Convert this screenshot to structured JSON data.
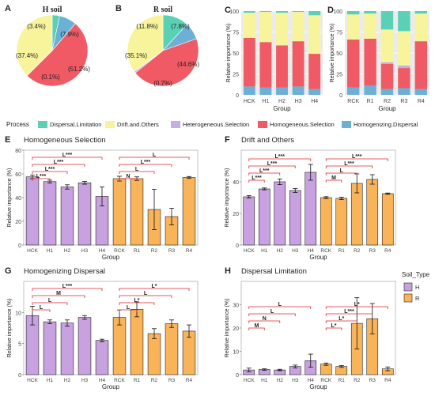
{
  "colors": {
    "Dispersal.Limitation": "#5ad1b5",
    "Drift.and.Others": "#f7f49c",
    "Heterogeneous.Selection": "#c5aee0",
    "Homogeneous.Selection": "#f05a64",
    "Homogenizing.Dispersal": "#6cb0d6",
    "H": "#c8a2e0",
    "R": "#f9b45a",
    "sig": "#e0262f"
  },
  "legend": {
    "title": "Process",
    "items": [
      "Dispersal.Limitation",
      "Drift.and.Others",
      "Heterogeneous.Selection",
      "Homogeneous.Selection",
      "Homogenizing.Dispersal"
    ]
  },
  "soil_legend": {
    "title": "Soil_Type",
    "items": [
      "H",
      "R"
    ]
  },
  "chart_data": [
    {
      "panel": "A",
      "type": "pie",
      "title": "H soil",
      "slices": [
        {
          "name": "Dispersal.Limitation",
          "value": 3.4,
          "label": "(3.4%)"
        },
        {
          "name": "Homogenizing.Dispersal",
          "value": 7.9,
          "label": "(7.9%)"
        },
        {
          "name": "Homogeneous.Selection",
          "value": 51.2,
          "label": "(51.2%)"
        },
        {
          "name": "Heterogeneous.Selection",
          "value": 0.1,
          "label": "(0.1%)"
        },
        {
          "name": "Drift.and.Others",
          "value": 37.4,
          "label": "(37.4%)"
        }
      ]
    },
    {
      "panel": "B",
      "type": "pie",
      "title": "R soil",
      "slices": [
        {
          "name": "Dispersal.Limitation",
          "value": 11.8,
          "label": "(11.8%)"
        },
        {
          "name": "Homogenizing.Dispersal",
          "value": 7.8,
          "label": "(7.8%)"
        },
        {
          "name": "Homogeneous.Selection",
          "value": 44.6,
          "label": "(44.6%)"
        },
        {
          "name": "Heterogeneous.Selection",
          "value": 0.7,
          "label": "(0.7%)"
        },
        {
          "name": "Drift.and.Others",
          "value": 35.1,
          "label": "(35.1%)"
        }
      ]
    },
    {
      "panel": "C",
      "type": "bar",
      "stacked": true,
      "xlabel": "Group",
      "ylabel": "Relative importance (%)",
      "categories": [
        "HCK",
        "H1",
        "H2",
        "H3",
        "H4"
      ],
      "ylim": [
        0,
        100
      ],
      "yticks": [
        0,
        25,
        50,
        75,
        100
      ],
      "series": [
        {
          "name": "Homogenizing.Dispersal",
          "values": [
            10,
            9,
            9,
            10,
            7
          ]
        },
        {
          "name": "Homogeneous.Selection",
          "values": [
            58,
            54,
            50,
            54,
            42
          ]
        },
        {
          "name": "Heterogeneous.Selection",
          "values": [
            0,
            0,
            0,
            0,
            0
          ]
        },
        {
          "name": "Drift.and.Others",
          "values": [
            30,
            36,
            39,
            35,
            46
          ]
        },
        {
          "name": "Dispersal.Limitation",
          "values": [
            2,
            1,
            2,
            1,
            5
          ]
        }
      ]
    },
    {
      "panel": "D",
      "type": "bar",
      "stacked": true,
      "xlabel": "Group",
      "ylabel": "Relative importance (%)",
      "categories": [
        "RCK",
        "R1",
        "R2",
        "R3",
        "R4"
      ],
      "ylim": [
        0,
        100
      ],
      "yticks": [
        0,
        25,
        50,
        75,
        100
      ],
      "series": [
        {
          "name": "Homogenizing.Dispersal",
          "values": [
            9,
            11,
            7,
            8,
            7
          ]
        },
        {
          "name": "Homogeneous.Selection",
          "values": [
            57,
            56,
            30,
            24,
            57
          ]
        },
        {
          "name": "Heterogeneous.Selection",
          "values": [
            0,
            0,
            2,
            3,
            0
          ]
        },
        {
          "name": "Drift.and.Others",
          "values": [
            30,
            30,
            39,
            41,
            33
          ]
        },
        {
          "name": "Dispersal.Limitation",
          "values": [
            4,
            3,
            22,
            24,
            3
          ]
        }
      ]
    },
    {
      "panel": "E",
      "type": "bar",
      "title": "Homogeneous Selection",
      "xlabel": "Group",
      "ylabel": "Relative importance (%)",
      "categories": [
        "HCK",
        "H1",
        "H2",
        "H3",
        "H4",
        "RCK",
        "R1",
        "R2",
        "R3",
        "R4"
      ],
      "groups": [
        "H",
        "H",
        "H",
        "H",
        "H",
        "R",
        "R",
        "R",
        "R",
        "R"
      ],
      "values": [
        57.5,
        53.5,
        49,
        52.5,
        41,
        56,
        56,
        30,
        24,
        57
      ],
      "errors": [
        1.5,
        1.2,
        1.8,
        1.2,
        8,
        2,
        1.5,
        17,
        7,
        0.8
      ],
      "ylim": [
        0,
        80
      ],
      "yticks": [
        0,
        20,
        40,
        60,
        80
      ],
      "comparisons": [
        {
          "from": 0,
          "to": 1,
          "label": "L***",
          "tier": 0
        },
        {
          "from": 0,
          "to": 2,
          "label": "L***",
          "tier": 1
        },
        {
          "from": 0,
          "to": 3,
          "label": "L***",
          "tier": 2
        },
        {
          "from": 0,
          "to": 4,
          "label": "L***",
          "tier": 3
        },
        {
          "from": 5,
          "to": 6,
          "label": "N",
          "tier": 0
        },
        {
          "from": 5,
          "to": 7,
          "label": "L",
          "tier": 1
        },
        {
          "from": 5,
          "to": 8,
          "label": "L***",
          "tier": 2
        },
        {
          "from": 5,
          "to": 9,
          "label": "L",
          "tier": 3
        }
      ]
    },
    {
      "panel": "F",
      "type": "bar",
      "title": "Drift and Others",
      "xlabel": "Group",
      "ylabel": "Relative importance (%)",
      "categories": [
        "HCK",
        "H1",
        "H2",
        "H3",
        "H4",
        "RCK",
        "R1",
        "R2",
        "R3",
        "R4"
      ],
      "groups": [
        "H",
        "H",
        "H",
        "H",
        "H",
        "R",
        "R",
        "R",
        "R",
        "R"
      ],
      "values": [
        30.5,
        35.5,
        40,
        34.5,
        46,
        30,
        29.5,
        39,
        41.5,
        32.5
      ],
      "errors": [
        0.8,
        0.6,
        1.8,
        1.2,
        5,
        0.6,
        0.8,
        6,
        3,
        0.4
      ],
      "ylim": [
        0,
        60
      ],
      "yticks": [
        0,
        20,
        40
      ],
      "comparisons": [
        {
          "from": 0,
          "to": 1,
          "label": "L***",
          "tier": 0
        },
        {
          "from": 0,
          "to": 2,
          "label": "L***",
          "tier": 1
        },
        {
          "from": 0,
          "to": 3,
          "label": "L***",
          "tier": 2
        },
        {
          "from": 0,
          "to": 4,
          "label": "L***",
          "tier": 3
        },
        {
          "from": 5,
          "to": 6,
          "label": "M",
          "tier": 0
        },
        {
          "from": 5,
          "to": 7,
          "label": "L",
          "tier": 1
        },
        {
          "from": 5,
          "to": 8,
          "label": "L***",
          "tier": 2
        },
        {
          "from": 5,
          "to": 9,
          "label": "L***",
          "tier": 3
        }
      ]
    },
    {
      "panel": "G",
      "type": "bar",
      "title": "Homogenizing Dispersal",
      "xlabel": "Group",
      "ylabel": "Relative importance (%)",
      "categories": [
        "HCK",
        "H1",
        "H2",
        "H3",
        "H4",
        "RCK",
        "R1",
        "R2",
        "R3",
        "R4"
      ],
      "groups": [
        "H",
        "H",
        "H",
        "H",
        "H",
        "R",
        "R",
        "R",
        "R",
        "R"
      ],
      "values": [
        9.5,
        8.5,
        8.3,
        9.2,
        5.5,
        9.2,
        10.5,
        6.6,
        8.2,
        7
      ],
      "errors": [
        1.5,
        0.3,
        0.5,
        0.3,
        0.2,
        1.2,
        1.2,
        0.8,
        0.6,
        1
      ],
      "ylim": [
        0,
        15
      ],
      "yticks": [
        0,
        5,
        10
      ],
      "comparisons": [
        {
          "from": 0,
          "to": 1,
          "label": "L",
          "tier": 0
        },
        {
          "from": 0,
          "to": 2,
          "label": "L",
          "tier": 1
        },
        {
          "from": 0,
          "to": 3,
          "label": "M",
          "tier": 2
        },
        {
          "from": 0,
          "to": 4,
          "label": "L***",
          "tier": 3
        },
        {
          "from": 5,
          "to": 6,
          "label": "L",
          "tier": 0
        },
        {
          "from": 5,
          "to": 7,
          "label": "L*",
          "tier": 1
        },
        {
          "from": 5,
          "to": 8,
          "label": "L",
          "tier": 2
        },
        {
          "from": 5,
          "to": 9,
          "label": "L*",
          "tier": 3
        }
      ]
    },
    {
      "panel": "H",
      "type": "bar",
      "title": "Dispersal Limitation",
      "xlabel": "Group",
      "ylabel": "Relative importance (%)",
      "categories": [
        "HCK",
        "H1",
        "H2",
        "H3",
        "H4",
        "RCK",
        "R1",
        "R2",
        "R3",
        "R4"
      ],
      "groups": [
        "H",
        "H",
        "H",
        "H",
        "H",
        "R",
        "R",
        "R",
        "R",
        "R"
      ],
      "values": [
        2,
        2.2,
        2,
        3.5,
        6,
        4.5,
        3.5,
        22,
        24,
        2.5
      ],
      "errors": [
        0.8,
        0.3,
        0.3,
        0.6,
        2.8,
        0.5,
        0.4,
        11,
        6.5,
        0.8
      ],
      "ylim": [
        0,
        40
      ],
      "yticks": [
        0,
        10,
        20,
        30
      ],
      "comparisons": [
        {
          "from": 0,
          "to": 1,
          "label": "M",
          "tier": 0
        },
        {
          "from": 0,
          "to": 2,
          "label": "N",
          "tier": 1
        },
        {
          "from": 0,
          "to": 3,
          "label": "L",
          "tier": 2
        },
        {
          "from": 0,
          "to": 4,
          "label": "L",
          "tier": 3
        },
        {
          "from": 5,
          "to": 6,
          "label": "L*",
          "tier": 0
        },
        {
          "from": 5,
          "to": 7,
          "label": "L*",
          "tier": 1
        },
        {
          "from": 5,
          "to": 8,
          "label": "L***",
          "tier": 2
        },
        {
          "from": 5,
          "to": 9,
          "label": "L*",
          "tier": 3
        }
      ]
    }
  ]
}
